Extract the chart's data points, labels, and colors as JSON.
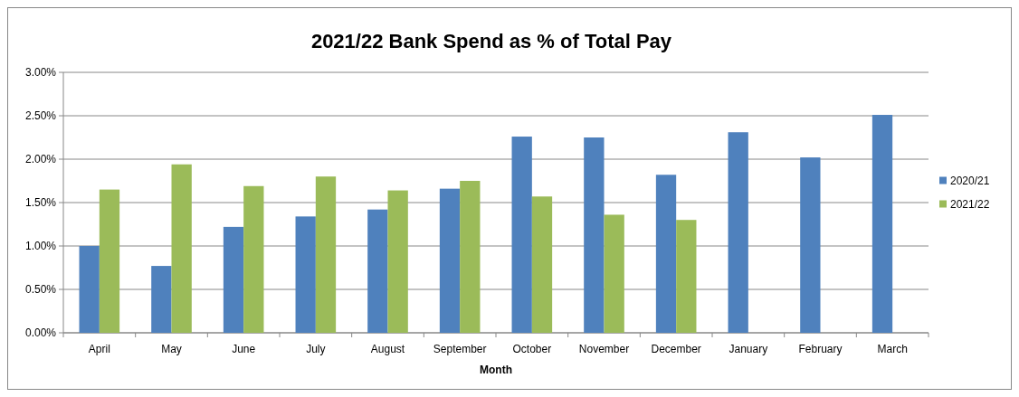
{
  "chart_data": {
    "type": "bar",
    "title": "2021/22 Bank Spend as % of Total Pay",
    "xlabel": "Month",
    "categories": [
      "April",
      "May",
      "June",
      "July",
      "August",
      "September",
      "October",
      "November",
      "December",
      "January",
      "February",
      "March"
    ],
    "series": [
      {
        "name": "2020/21",
        "color": "#4f81bd",
        "values": [
          1.0,
          0.77,
          1.22,
          1.34,
          1.42,
          1.66,
          2.26,
          2.25,
          1.82,
          2.31,
          2.02,
          2.51
        ]
      },
      {
        "name": "2021/22",
        "color": "#9bbb59",
        "values": [
          1.65,
          1.94,
          1.69,
          1.8,
          1.64,
          1.75,
          1.57,
          1.36,
          1.3,
          null,
          null,
          null
        ]
      }
    ],
    "ylim": [
      0,
      3
    ],
    "yticks": [
      {
        "value": 0,
        "label": "0.00%"
      },
      {
        "value": 0.5,
        "label": "0.50%"
      },
      {
        "value": 1,
        "label": "1.00%"
      },
      {
        "value": 1.5,
        "label": "1.50%"
      },
      {
        "value": 2,
        "label": "2.00%"
      },
      {
        "value": 2.5,
        "label": "2.50%"
      },
      {
        "value": 3,
        "label": "3.00%"
      }
    ],
    "grid": "y",
    "legend": "right"
  }
}
